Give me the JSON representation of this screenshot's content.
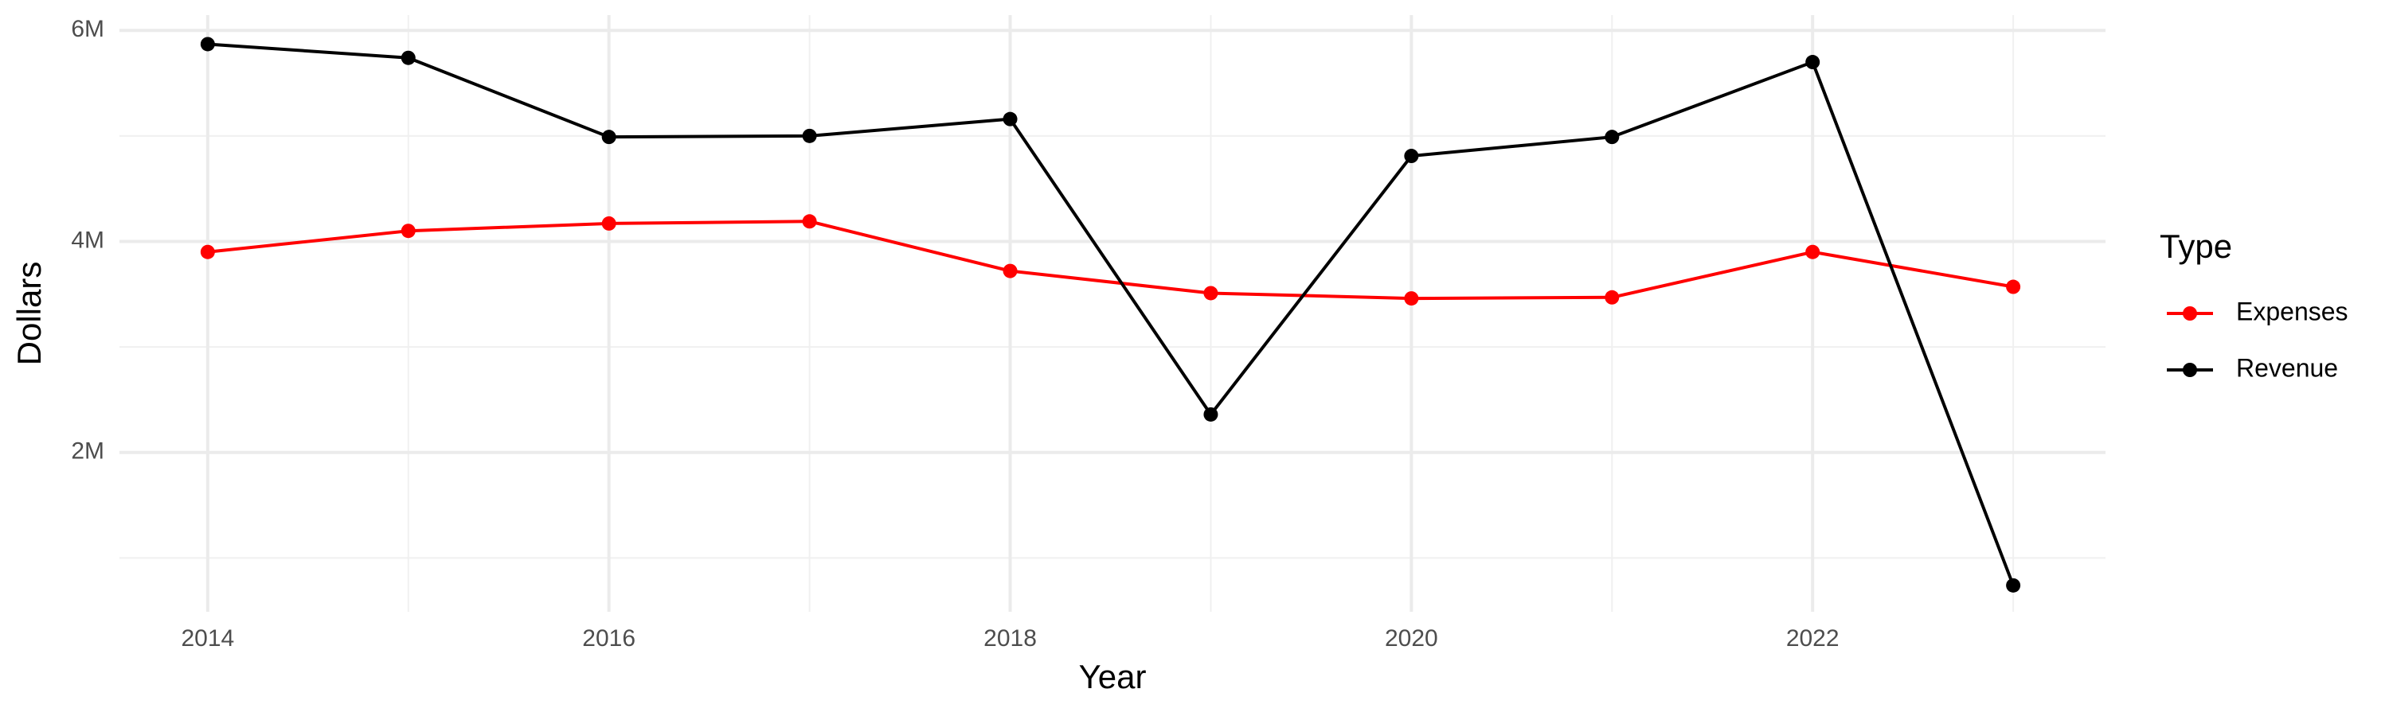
{
  "chart_data": {
    "type": "line",
    "x_label": "Year",
    "y_label": "Dollars",
    "legend_title": "Type",
    "legend": "right",
    "grid": true,
    "x": [
      2014,
      2015,
      2016,
      2017,
      2018,
      2019,
      2020,
      2021,
      2022,
      2023
    ],
    "series": [
      {
        "name": "Expenses",
        "color": "#ff0000",
        "values": [
          3900000,
          4100000,
          4170000,
          4190000,
          3720000,
          3510000,
          3460000,
          3470000,
          3900000,
          3570000
        ]
      },
      {
        "name": "Revenue",
        "color": "#000000",
        "values": [
          5870000,
          5740000,
          4990000,
          5000000,
          5160000,
          2360000,
          4810000,
          4990000,
          5700000,
          740000
        ]
      }
    ],
    "xlim": [
      2013.56,
      2023.46
    ],
    "xticks": [
      2014,
      2016,
      2018,
      2020,
      2022
    ],
    "x_minor_ticks": [
      2015,
      2017,
      2019,
      2021,
      2023
    ],
    "ylim": [
      490000,
      6145000
    ],
    "yticks": [
      {
        "value": 2000000,
        "label": "2M"
      },
      {
        "value": 4000000,
        "label": "4M"
      },
      {
        "value": 6000000,
        "label": "6M"
      }
    ],
    "y_minor_ticks": [
      1000000,
      3000000,
      5000000
    ]
  }
}
